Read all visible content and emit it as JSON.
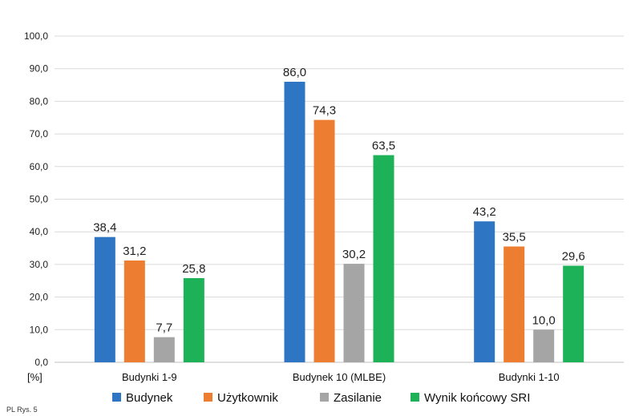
{
  "chart_data": {
    "type": "bar",
    "categories": [
      "Budynki 1-9",
      "Budynek 10 (MLBE)",
      "Budynki 1-10"
    ],
    "series": [
      {
        "name": "Budynek",
        "color": "#2E75C3",
        "values": [
          38.4,
          86.0,
          43.2
        ]
      },
      {
        "name": "Użytkownik",
        "color": "#ED7D31",
        "values": [
          31.2,
          74.3,
          35.5
        ]
      },
      {
        "name": "Zasilanie",
        "color": "#A5A5A5",
        "values": [
          7.7,
          30.2,
          10.0
        ]
      },
      {
        "name": "Wynik końcowy SRI",
        "color": "#1DB158",
        "values": [
          25.8,
          63.5,
          29.6
        ]
      }
    ],
    "y_ticks": [
      "0,0",
      "10,0",
      "20,0",
      "30,0",
      "40,0",
      "50,0",
      "60,0",
      "70,0",
      "80,0",
      "90,0",
      "100,0"
    ],
    "ylim": [
      0,
      100
    ],
    "y_unit_label": "[%]",
    "legend_position": "bottom",
    "grid": true
  },
  "footer_note": "PL Rys. 5"
}
